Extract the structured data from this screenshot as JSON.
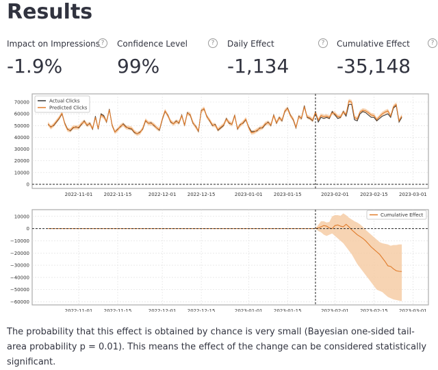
{
  "title": "Results",
  "metrics": [
    {
      "label": "Impact on Impressions",
      "value": "-1.9%",
      "icon": "help-icon"
    },
    {
      "label": "Confidence Level",
      "value": "99%",
      "icon": "help-icon"
    },
    {
      "label": "Daily Effect",
      "value": "-1,134",
      "icon": "help-icon"
    },
    {
      "label": "Cumulative Effect",
      "value": "-35,148",
      "icon": "help-icon"
    }
  ],
  "chart_data": [
    {
      "type": "line",
      "start_date": "2022-10-21",
      "intervention_date": "2023-01-25",
      "xticks": [
        "2022-11-01",
        "2022-11-15",
        "2022-12-01",
        "2022-12-15",
        "2023-01-01",
        "2023-01-15",
        "2023-02-01",
        "2023-02-15",
        "2023-03-01"
      ],
      "yticks": [
        0,
        10000,
        20000,
        30000,
        40000,
        50000,
        60000,
        70000
      ],
      "ylim": [
        -3500,
        77000
      ],
      "grid": true,
      "legend": "top-left",
      "series": [
        {
          "name": "Actual Clicks",
          "color": "#333333",
          "values": [
            51000,
            49000,
            50000,
            53000,
            56000,
            60000,
            52000,
            47000,
            45500,
            48000,
            49000,
            48000,
            51000,
            54000,
            50000,
            52000,
            47000,
            58000,
            47000,
            60000,
            58500,
            53000,
            64000,
            50000,
            44500,
            47000,
            49000,
            51500,
            49000,
            47500,
            47000,
            44000,
            43000,
            44500,
            47000,
            54000,
            52000,
            52500,
            50000,
            48000,
            46000,
            55000,
            62000,
            59000,
            53000,
            51500,
            54000,
            52000,
            59000,
            50000,
            61000,
            59000,
            52000,
            49500,
            45000,
            63000,
            64000,
            58000,
            54000,
            50000,
            51000,
            46000,
            48000,
            50000,
            56000,
            52000,
            51000,
            59000,
            47000,
            51000,
            52000,
            55000,
            49000,
            45000,
            45000,
            45500,
            48000,
            48000,
            51000,
            53000,
            50000,
            59000,
            52000,
            57000,
            54000,
            62000,
            65000,
            59000,
            55000,
            48000,
            58000,
            56000,
            67000,
            57000,
            56000,
            54000,
            61000,
            53000,
            57000,
            56000,
            57000,
            56000,
            62000,
            59000,
            56000,
            57000,
            62000,
            58000,
            68000,
            68000,
            55000,
            54000,
            60000,
            62000,
            61000,
            59000,
            57000,
            57000,
            54000,
            56000,
            58000,
            59000,
            60000,
            57000,
            65000,
            67000,
            53000,
            57000
          ]
        },
        {
          "name": "Predicted Clicks",
          "color": "#e07b2a",
          "band_color": "#f5c9a0",
          "values": [
            51500,
            48500,
            50500,
            53500,
            56500,
            60500,
            51500,
            46500,
            46000,
            48500,
            48500,
            48500,
            51500,
            53500,
            50500,
            51500,
            47500,
            57000,
            47500,
            59000,
            57500,
            53500,
            63500,
            50500,
            44500,
            46500,
            49500,
            51000,
            48500,
            48000,
            47500,
            44500,
            43000,
            44000,
            47500,
            54500,
            52000,
            52000,
            50500,
            48000,
            46500,
            55500,
            62500,
            58500,
            53500,
            51500,
            53500,
            52500,
            58500,
            50500,
            60500,
            59500,
            52500,
            49000,
            45500,
            62500,
            64500,
            57500,
            54500,
            50500,
            50500,
            46500,
            48500,
            50500,
            55500,
            52500,
            51000,
            58500,
            47500,
            50500,
            52500,
            55500,
            48500,
            44000,
            44500,
            46000,
            47500,
            48500,
            51500,
            52500,
            50500,
            58500,
            52500,
            56500,
            54500,
            62500,
            64500,
            58500,
            55500,
            48500,
            57500,
            56500,
            66000,
            57500,
            56500,
            54500,
            61500,
            54500,
            58500,
            57500,
            58000,
            57000,
            61000,
            60000,
            57500,
            57500,
            61500,
            59500,
            71000,
            70000,
            57000,
            55500,
            61500,
            63000,
            62500,
            61000,
            59000,
            58500,
            55000,
            57500,
            60000,
            61500,
            62500,
            58000,
            66000,
            68000,
            54000,
            58000
          ]
        }
      ]
    },
    {
      "type": "line",
      "start_date": "2022-10-21",
      "intervention_date": "2023-01-25",
      "xticks": [
        "2022-11-01",
        "2022-11-15",
        "2022-12-01",
        "2022-12-15",
        "2023-01-01",
        "2023-01-15",
        "2023-02-01",
        "2023-02-15",
        "2023-03-01"
      ],
      "yticks": [
        10000,
        0,
        -10000,
        -20000,
        -30000,
        -40000,
        -50000,
        -60000
      ],
      "ylim": [
        -62500,
        15500
      ],
      "grid": true,
      "legend": "top-right",
      "series": [
        {
          "name": "Cumulative Effect",
          "color": "#e07b2a",
          "band_color": "#f5c9a0",
          "values": [
            0,
            500,
            1500,
            2500,
            2000,
            500,
            0,
            2500,
            3000,
            2000,
            1500,
            3500,
            1500,
            -1000,
            -3000,
            -5000,
            -6500,
            -8000,
            -10000,
            -12500,
            -15000,
            -17000,
            -19000,
            -21000,
            -24000,
            -27000,
            -30500,
            -31000,
            -33000,
            -34500,
            -35000,
            -35148
          ],
          "upper": [
            0,
            3000,
            6000,
            6000,
            5000,
            5500,
            10000,
            11000,
            11000,
            10500,
            12500,
            11000,
            9000,
            7500,
            6000,
            5000,
            3500,
            1500,
            -1000,
            -3000,
            -5000,
            -7000,
            -9000,
            -11000,
            -12000,
            -12500,
            -13000,
            -14000,
            -13500,
            -13500,
            -13000,
            -13000
          ],
          "lower": [
            0,
            -2000,
            -3000,
            -5000,
            -6000,
            -5000,
            -4000,
            -6000,
            -8000,
            -10000,
            -12000,
            -15000,
            -18000,
            -21000,
            -25000,
            -29000,
            -32000,
            -35000,
            -38000,
            -41000,
            -44000,
            -47000,
            -50000,
            -51000,
            -52000,
            -54000,
            -56000,
            -57000,
            -58000,
            -58500,
            -59000,
            -59500
          ]
        }
      ]
    }
  ],
  "footer": "The probability that this effect is obtained by chance is very small (Bayesian one-sided tail-area probability p = 0.01). This means the effect of the change can be considered statistically significant."
}
